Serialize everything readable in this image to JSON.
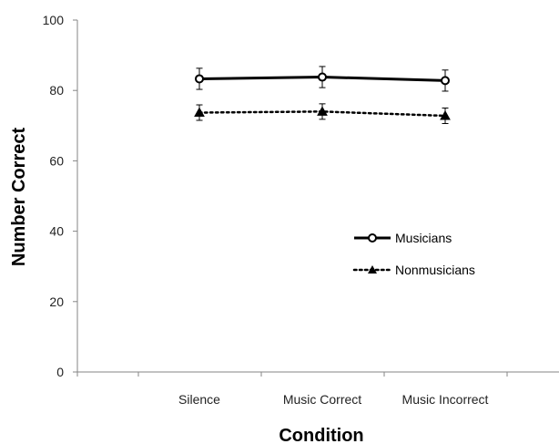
{
  "chart_data": {
    "type": "line",
    "title": "",
    "xlabel": "Condition",
    "ylabel": "Number Correct",
    "categories": [
      "Silence",
      "Music Correct",
      "Music Incorrect"
    ],
    "ylim": [
      0,
      100
    ],
    "yticks": [
      0,
      20,
      40,
      60,
      80,
      100
    ],
    "grid": false,
    "legend_position": "right",
    "series": [
      {
        "name": "Musicians",
        "values": [
          83.3,
          83.8,
          82.8
        ],
        "errors": [
          3.0,
          3.0,
          3.0
        ],
        "color": "#000000",
        "line_style": "solid",
        "marker": "open-circle"
      },
      {
        "name": "Nonmusicians",
        "values": [
          73.7,
          74.0,
          72.8
        ],
        "errors": [
          2.2,
          2.2,
          2.2
        ],
        "color": "#000000",
        "line_style": "dotted",
        "marker": "filled-triangle"
      }
    ]
  }
}
